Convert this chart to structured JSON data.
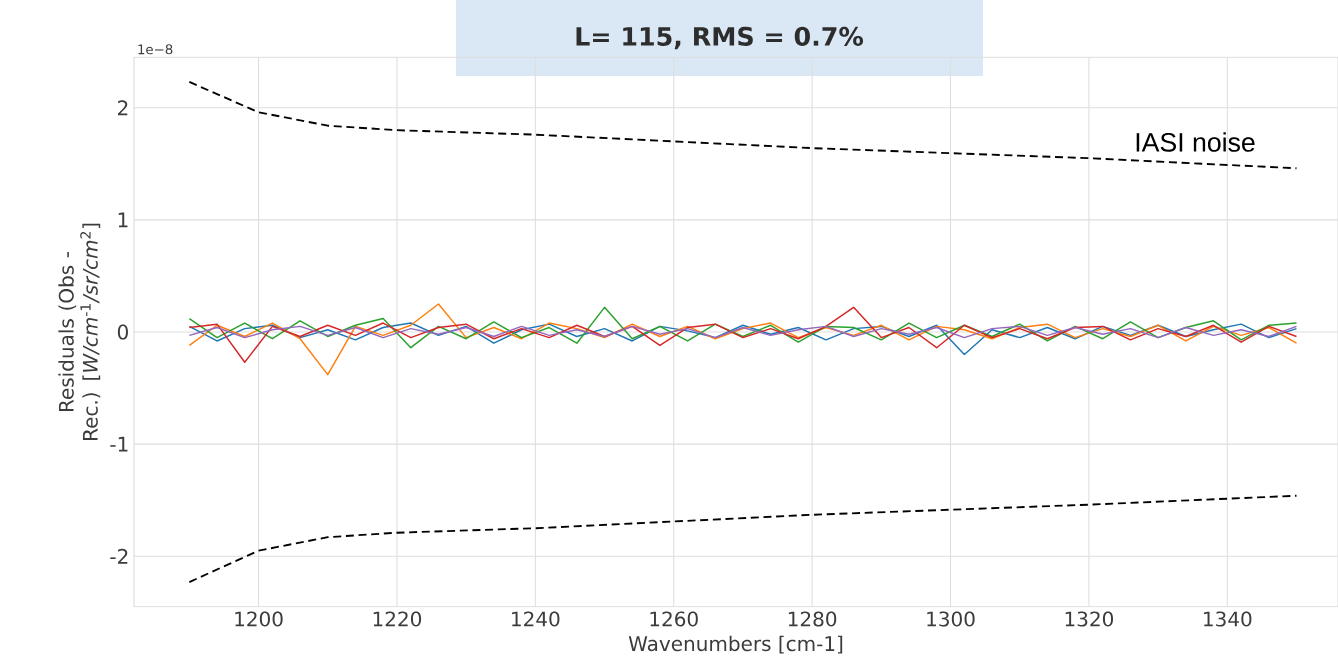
{
  "chart_data": {
    "type": "line",
    "title": "L= 115,   RMS = 0.7%",
    "xlabel": "Wavenumbers [cm-1]",
    "ylabel": "Residuals (Obs - Rec.) [*W/cm*$^{-1}$*/sr/cm*$^{2}$]",
    "annotations": [
      "1e−8",
      "IASI noise"
    ],
    "xlim": [
      1182,
      1356
    ],
    "xticks": [
      1200,
      1220,
      1240,
      1260,
      1280,
      1300,
      1320,
      1340
    ],
    "ylim": [
      -2.45,
      2.45
    ],
    "yticks": [
      -2,
      -1,
      0,
      1,
      2
    ],
    "grid": true,
    "x": [
      1190,
      1194,
      1198,
      1202,
      1206,
      1210,
      1214,
      1218,
      1222,
      1226,
      1230,
      1234,
      1238,
      1242,
      1246,
      1250,
      1254,
      1258,
      1262,
      1266,
      1270,
      1274,
      1278,
      1282,
      1286,
      1290,
      1294,
      1298,
      1302,
      1306,
      1310,
      1314,
      1318,
      1322,
      1326,
      1330,
      1334,
      1338,
      1342,
      1346,
      1350
    ],
    "series": [
      {
        "color": "#1f77b4",
        "values": [
          0.05,
          -0.08,
          0.03,
          0.06,
          -0.05,
          0.02,
          -0.07,
          0.04,
          0.08,
          -0.03,
          0.05,
          -0.1,
          0.02,
          0.07,
          -0.04,
          0.03,
          -0.08,
          0.05,
          0.01,
          -0.05,
          0.06,
          -0.02,
          0.04,
          -0.07,
          0.03,
          0.05,
          -0.04,
          0.06,
          -0.2,
          0.02,
          -0.05,
          0.04,
          -0.06,
          0.05,
          -0.03,
          0.06,
          -0.04,
          0.02,
          0.07,
          -0.05,
          0.03
        ]
      },
      {
        "color": "#ff7f0e",
        "values": [
          -0.12,
          0.06,
          -0.04,
          0.08,
          -0.06,
          -0.38,
          0.05,
          -0.03,
          0.06,
          0.25,
          -0.05,
          0.04,
          -0.06,
          0.08,
          0.03,
          -0.05,
          0.07,
          -0.04,
          0.05,
          -0.06,
          0.03,
          0.08,
          -0.05,
          0.04,
          -0.03,
          0.06,
          -0.07,
          0.05,
          0.02,
          -0.06,
          0.04,
          0.07,
          -0.05,
          0.03,
          -0.04,
          0.06,
          -0.08,
          0.05,
          -0.03,
          0.04,
          -0.1
        ]
      },
      {
        "color": "#2ca02c",
        "values": [
          0.12,
          -0.05,
          0.08,
          -0.06,
          0.1,
          -0.04,
          0.06,
          0.12,
          -0.14,
          0.05,
          -0.06,
          0.09,
          -0.05,
          0.04,
          -0.1,
          0.22,
          -0.06,
          0.05,
          -0.08,
          0.07,
          -0.04,
          0.06,
          -0.09,
          0.05,
          0.04,
          -0.07,
          0.08,
          -0.05,
          0.06,
          -0.04,
          0.07,
          -0.08,
          0.05,
          -0.06,
          0.09,
          -0.05,
          0.04,
          0.1,
          -0.07,
          0.06,
          0.08
        ]
      },
      {
        "color": "#d62728",
        "values": [
          0.04,
          0.07,
          -0.27,
          0.05,
          -0.04,
          0.06,
          -0.03,
          0.08,
          -0.05,
          0.04,
          0.07,
          -0.06,
          0.03,
          -0.05,
          0.06,
          -0.04,
          0.05,
          -0.12,
          0.04,
          0.07,
          -0.05,
          0.03,
          -0.06,
          0.05,
          0.22,
          -0.05,
          0.04,
          -0.14,
          0.06,
          -0.05,
          0.03,
          -0.06,
          0.04,
          0.05,
          -0.07,
          0.03,
          -0.04,
          0.06,
          -0.09,
          0.05,
          -0.04
        ]
      },
      {
        "color": "#9467bd",
        "values": [
          -0.03,
          0.04,
          -0.05,
          0.02,
          0.05,
          -0.03,
          0.04,
          -0.05,
          0.03,
          -0.02,
          0.04,
          -0.04,
          0.05,
          -0.03,
          0.02,
          -0.04,
          0.05,
          -0.02,
          0.03,
          -0.05,
          0.04,
          -0.03,
          0.02,
          0.05,
          -0.04,
          0.03,
          -0.02,
          0.04,
          -0.05,
          0.03,
          0.05,
          -0.03,
          0.04,
          -0.02,
          0.03,
          -0.05,
          0.04,
          -0.03,
          0.02,
          -0.04,
          0.05
        ]
      },
      {
        "color": "#000000",
        "line_style": "dashed",
        "x": [
          1190,
          1200,
          1210,
          1220,
          1240,
          1280,
          1320,
          1350
        ],
        "values": [
          2.23,
          1.96,
          1.84,
          1.8,
          1.76,
          1.64,
          1.55,
          1.46
        ]
      },
      {
        "color": "#000000",
        "line_style": "dashed",
        "x": [
          1190,
          1200,
          1210,
          1220,
          1240,
          1280,
          1320,
          1350
        ],
        "values": [
          -2.23,
          -1.95,
          -1.83,
          -1.79,
          -1.75,
          -1.63,
          -1.54,
          -1.46
        ]
      }
    ]
  }
}
